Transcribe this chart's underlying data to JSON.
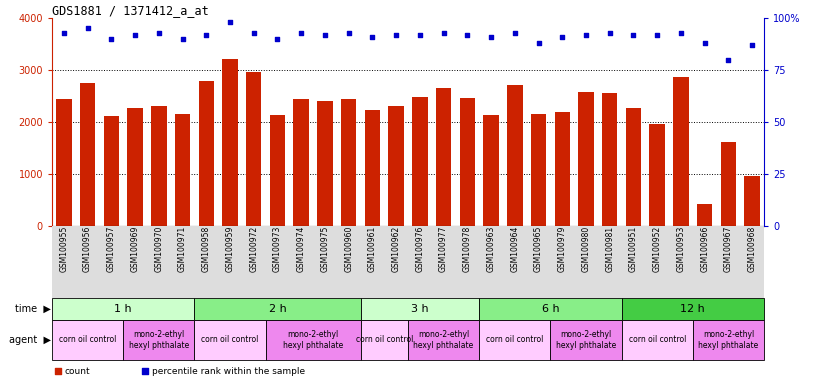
{
  "title": "GDS1881 / 1371412_a_at",
  "samples": [
    "GSM100955",
    "GSM100956",
    "GSM100957",
    "GSM100969",
    "GSM100970",
    "GSM100971",
    "GSM100958",
    "GSM100959",
    "GSM100972",
    "GSM100973",
    "GSM100974",
    "GSM100975",
    "GSM100960",
    "GSM100961",
    "GSM100962",
    "GSM100976",
    "GSM100977",
    "GSM100978",
    "GSM100963",
    "GSM100964",
    "GSM100965",
    "GSM100979",
    "GSM100980",
    "GSM100981",
    "GSM100951",
    "GSM100952",
    "GSM100953",
    "GSM100966",
    "GSM100967",
    "GSM100968"
  ],
  "counts": [
    2450,
    2750,
    2120,
    2270,
    2310,
    2160,
    2790,
    3220,
    2970,
    2130,
    2450,
    2410,
    2450,
    2230,
    2310,
    2490,
    2650,
    2470,
    2130,
    2720,
    2150,
    2200,
    2570,
    2560,
    2270,
    1970,
    2870,
    430,
    1610,
    960
  ],
  "percentiles": [
    93,
    95,
    90,
    92,
    93,
    90,
    92,
    98,
    93,
    90,
    93,
    92,
    93,
    91,
    92,
    92,
    93,
    92,
    91,
    93,
    88,
    91,
    92,
    93,
    92,
    92,
    93,
    88,
    80,
    87
  ],
  "bar_color": "#cc2200",
  "dot_color": "#0000cc",
  "ylim_left": [
    0,
    4000
  ],
  "ylim_right": [
    0,
    100
  ],
  "yticks_left": [
    0,
    1000,
    2000,
    3000,
    4000
  ],
  "yticks_right": [
    0,
    25,
    50,
    75,
    100
  ],
  "time_groups": [
    {
      "label": "1 h",
      "start": 0,
      "end": 6,
      "color": "#ccffcc"
    },
    {
      "label": "2 h",
      "start": 6,
      "end": 13,
      "color": "#88ee88"
    },
    {
      "label": "3 h",
      "start": 13,
      "end": 18,
      "color": "#ccffcc"
    },
    {
      "label": "6 h",
      "start": 18,
      "end": 24,
      "color": "#88ee88"
    },
    {
      "label": "12 h",
      "start": 24,
      "end": 30,
      "color": "#44cc44"
    }
  ],
  "agent_groups": [
    {
      "label": "corn oil control",
      "start": 0,
      "end": 3,
      "color": "#ffccff"
    },
    {
      "label": "mono-2-ethyl\nhexyl phthalate",
      "start": 3,
      "end": 6,
      "color": "#ee88ee"
    },
    {
      "label": "corn oil control",
      "start": 6,
      "end": 9,
      "color": "#ffccff"
    },
    {
      "label": "mono-2-ethyl\nhexyl phthalate",
      "start": 9,
      "end": 13,
      "color": "#ee88ee"
    },
    {
      "label": "corn oil control",
      "start": 13,
      "end": 15,
      "color": "#ffccff"
    },
    {
      "label": "mono-2-ethyl\nhexyl phthalate",
      "start": 15,
      "end": 18,
      "color": "#ee88ee"
    },
    {
      "label": "corn oil control",
      "start": 18,
      "end": 21,
      "color": "#ffccff"
    },
    {
      "label": "mono-2-ethyl\nhexyl phthalate",
      "start": 21,
      "end": 24,
      "color": "#ee88ee"
    },
    {
      "label": "corn oil control",
      "start": 24,
      "end": 27,
      "color": "#ffccff"
    },
    {
      "label": "mono-2-ethyl\nhexyl phthalate",
      "start": 27,
      "end": 30,
      "color": "#ee88ee"
    }
  ],
  "background_color": "#ffffff",
  "xtick_bg_color": "#dddddd",
  "bar_width": 0.65,
  "dot_size": 10,
  "tick_fontsize": 5.5,
  "row_label_fontsize": 7.0,
  "time_fontsize": 8.0,
  "agent_fontsize": 5.5
}
